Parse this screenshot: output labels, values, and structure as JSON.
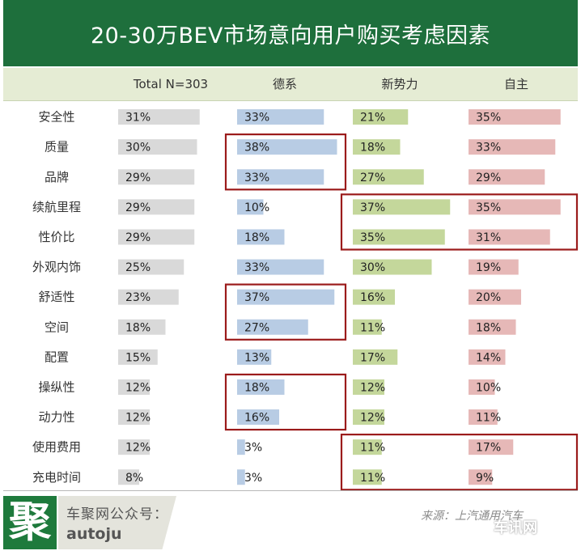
{
  "header": {
    "title": "20-30万BEV市场意向用户购买考虑因素"
  },
  "chart_data": {
    "type": "bar",
    "title": "20-30万BEV市场意向用户购买考虑因素",
    "categories": [
      "安全性",
      "质量",
      "品牌",
      "续航里程",
      "性价比",
      "外观内饰",
      "舒适性",
      "空间",
      "配置",
      "操纵性",
      "动力性",
      "使用费用",
      "充电时间"
    ],
    "series": [
      {
        "name": "Total N=303",
        "color": "#d9d9d9",
        "values": [
          31,
          30,
          29,
          29,
          29,
          25,
          23,
          18,
          15,
          12,
          12,
          12,
          8
        ]
      },
      {
        "name": "德系",
        "color": "#b8cce4",
        "values": [
          33,
          38,
          33,
          10,
          18,
          33,
          37,
          27,
          13,
          18,
          16,
          3,
          3
        ]
      },
      {
        "name": "新势力",
        "color": "#c4d79b",
        "values": [
          21,
          18,
          27,
          37,
          35,
          30,
          16,
          11,
          17,
          12,
          12,
          11,
          11
        ]
      },
      {
        "name": "自主",
        "color": "#e6b8b7",
        "values": [
          35,
          33,
          29,
          35,
          31,
          19,
          20,
          18,
          14,
          10,
          11,
          17,
          9
        ]
      }
    ],
    "value_suffix": "%",
    "value_max": 40,
    "highlight_color": "#9b1b1b",
    "highlights": [
      {
        "series": 1,
        "from": 1,
        "to": 2
      },
      {
        "series": 2,
        "from": 3,
        "to": 4,
        "span_series": 3
      },
      {
        "series": 1,
        "from": 6,
        "to": 7
      },
      {
        "series": 1,
        "from": 9,
        "to": 10
      },
      {
        "series": 2,
        "from": 11,
        "to": 12,
        "span_series": 3
      }
    ]
  },
  "footer": {
    "logo_char": "聚",
    "brand_line1": "车聚网公众号：",
    "brand_line2": "autoju",
    "source": "来源：上汽通用汽车",
    "watermark": "车讯网"
  }
}
